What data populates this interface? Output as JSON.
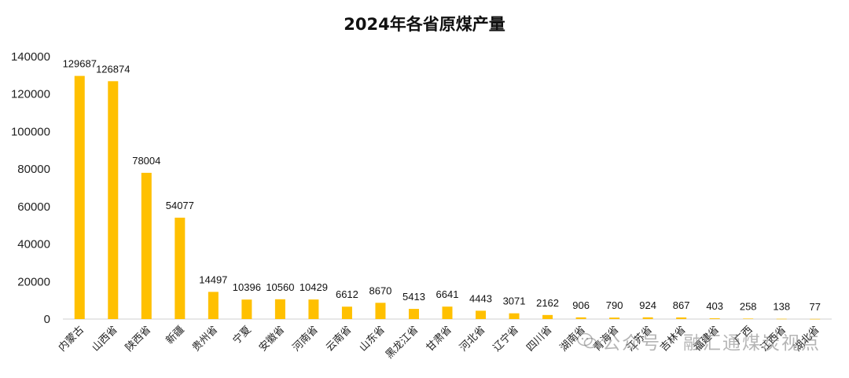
{
  "chart_data": {
    "type": "bar",
    "title": "2024年各省原煤产量",
    "categories": [
      "内蒙古",
      "山西省",
      "陕西省",
      "新疆",
      "贵州省",
      "宁夏",
      "安徽省",
      "河南省",
      "云南省",
      "山东省",
      "黑龙江省",
      "甘肃省",
      "河北省",
      "辽宁省",
      "四川省",
      "湖南省",
      "青海省",
      "江苏省",
      "吉林省",
      "福建省",
      "广西",
      "江西省",
      "湖北省"
    ],
    "values": [
      129687,
      126874,
      78004,
      54077,
      14497,
      10396,
      10560,
      10429,
      6612,
      8670,
      5413,
      6641,
      4443,
      3071,
      2162,
      906,
      790,
      924,
      867,
      403,
      258,
      138,
      77
    ],
    "ylim": [
      0,
      140000
    ],
    "yticks": [
      0,
      20000,
      40000,
      60000,
      80000,
      100000,
      120000,
      140000
    ],
    "bar_color": "#FFC000",
    "grid": false,
    "legend": "none"
  },
  "watermark": {
    "text": "公众号 · 融汇通煤炭视点",
    "icon": "wechat-icon"
  }
}
